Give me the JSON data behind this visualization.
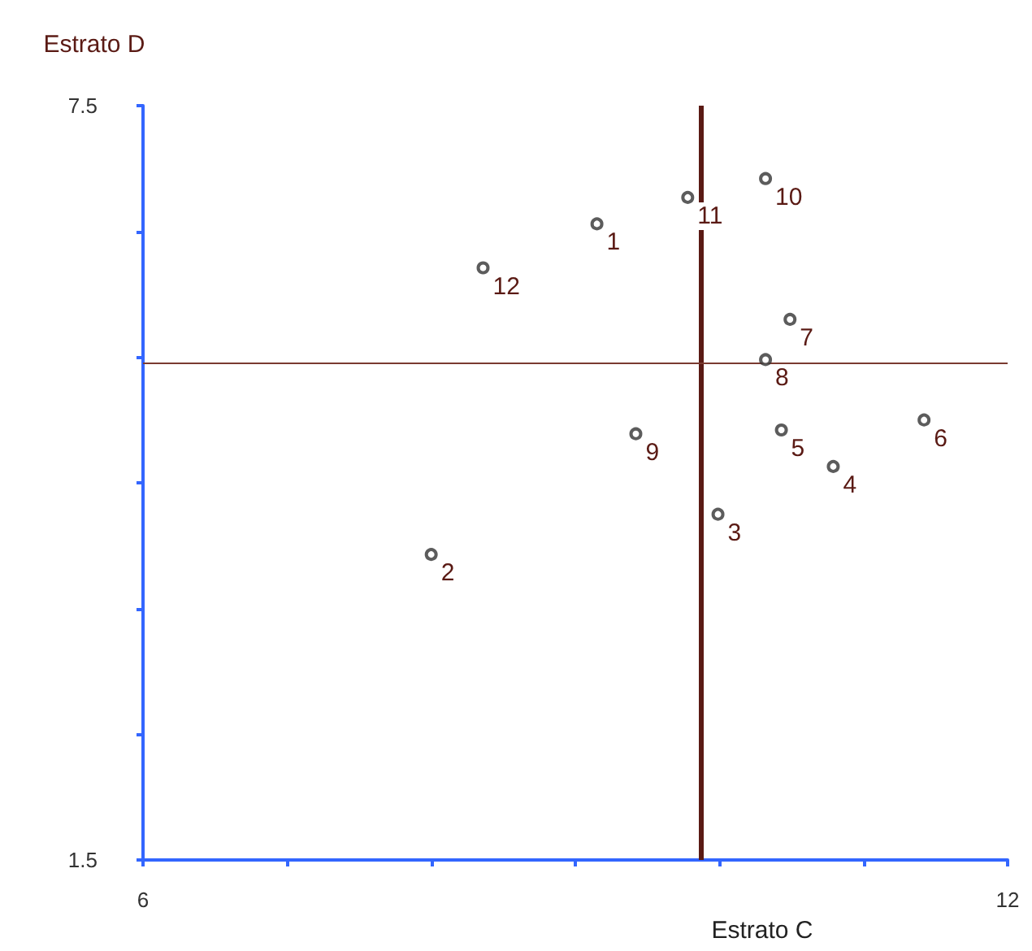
{
  "chart_data": {
    "type": "scatter",
    "xlabel": "Estrato C",
    "ylabel": "Estrato D",
    "x": [
      9.15,
      8.0,
      9.99,
      10.79,
      10.43,
      11.42,
      10.49,
      10.32,
      9.42,
      10.32,
      9.78,
      8.36
    ],
    "values": [
      6.56,
      3.93,
      4.25,
      4.63,
      4.92,
      5.0,
      5.8,
      5.48,
      4.89,
      6.92,
      6.77,
      6.21
    ],
    "annotations": [
      {
        "text": "1",
        "x": 9.15,
        "y": 6.56
      },
      {
        "text": "2",
        "x": 8.0,
        "y": 3.93
      },
      {
        "text": "3",
        "x": 9.99,
        "y": 4.25
      },
      {
        "text": "4",
        "x": 10.79,
        "y": 4.63
      },
      {
        "text": "5",
        "x": 10.43,
        "y": 4.92
      },
      {
        "text": "6",
        "x": 11.42,
        "y": 5.0
      },
      {
        "text": "7",
        "x": 10.49,
        "y": 5.8
      },
      {
        "text": "8",
        "x": 10.32,
        "y": 5.48
      },
      {
        "text": "9",
        "x": 9.42,
        "y": 4.89
      },
      {
        "text": "10",
        "x": 10.32,
        "y": 6.92
      },
      {
        "text": "11",
        "x": 9.78,
        "y": 6.77
      },
      {
        "text": "12",
        "x": 8.36,
        "y": 6.21
      }
    ],
    "color": "#333333",
    "marker": "circle",
    "grid": false,
    "xlim": [
      6,
      12
    ],
    "xticks": [
      6,
      {
        "value": 7,
        "label": null
      },
      {
        "value": 8,
        "label": null
      },
      {
        "value": 9,
        "label": null
      },
      {
        "value": 10,
        "label": null
      },
      {
        "value": 11,
        "label": null
      },
      12
    ],
    "ylim": [
      1.5,
      7.5
    ],
    "yticks": [
      1.5,
      {
        "value": 2.5,
        "label": null
      },
      {
        "value": 3.5,
        "label": null
      },
      {
        "value": 4.5,
        "label": null
      },
      {
        "value": 5.5,
        "label": null
      },
      {
        "value": 6.5,
        "label": null
      },
      7.5
    ],
    "ref_lines": [
      {
        "axis": "x",
        "value": 9.87,
        "color": "#5a1a14"
      },
      {
        "axis": "y",
        "value": 5.46,
        "color": "#7a3a30"
      }
    ]
  }
}
